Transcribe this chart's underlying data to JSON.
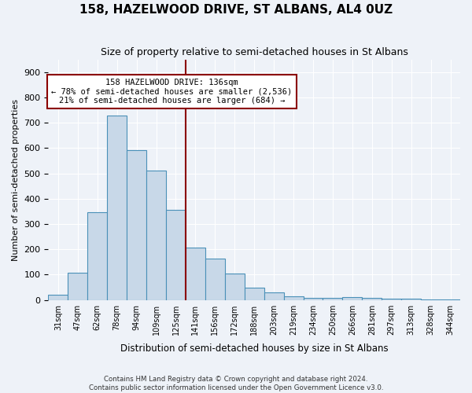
{
  "title": "158, HAZELWOOD DRIVE, ST ALBANS, AL4 0UZ",
  "subtitle": "Size of property relative to semi-detached houses in St Albans",
  "xlabel": "Distribution of semi-detached houses by size in St Albans",
  "ylabel": "Number of semi-detached properties",
  "categories": [
    "31sqm",
    "47sqm",
    "62sqm",
    "78sqm",
    "94sqm",
    "109sqm",
    "125sqm",
    "141sqm",
    "156sqm",
    "172sqm",
    "188sqm",
    "203sqm",
    "219sqm",
    "234sqm",
    "250sqm",
    "266sqm",
    "281sqm",
    "297sqm",
    "313sqm",
    "328sqm",
    "344sqm"
  ],
  "values": [
    22,
    107,
    347,
    727,
    593,
    512,
    355,
    207,
    163,
    103,
    50,
    30,
    14,
    8,
    7,
    10,
    8,
    5,
    4,
    3,
    2
  ],
  "bar_color": "#c8d8e8",
  "bar_edge_color": "#4a90b8",
  "vline_color": "#8b0000",
  "annotation_title": "158 HAZELWOOD DRIVE: 136sqm",
  "annotation_line1": "← 78% of semi-detached houses are smaller (2,536)",
  "annotation_line2": "21% of semi-detached houses are larger (684) →",
  "annotation_box_color": "#8b0000",
  "ylim": [
    0,
    950
  ],
  "yticks": [
    0,
    100,
    200,
    300,
    400,
    500,
    600,
    700,
    800,
    900
  ],
  "background_color": "#eef2f8",
  "grid_color": "#ffffff",
  "footer1": "Contains HM Land Registry data © Crown copyright and database right 2024.",
  "footer2": "Contains public sector information licensed under the Open Government Licence v3.0."
}
